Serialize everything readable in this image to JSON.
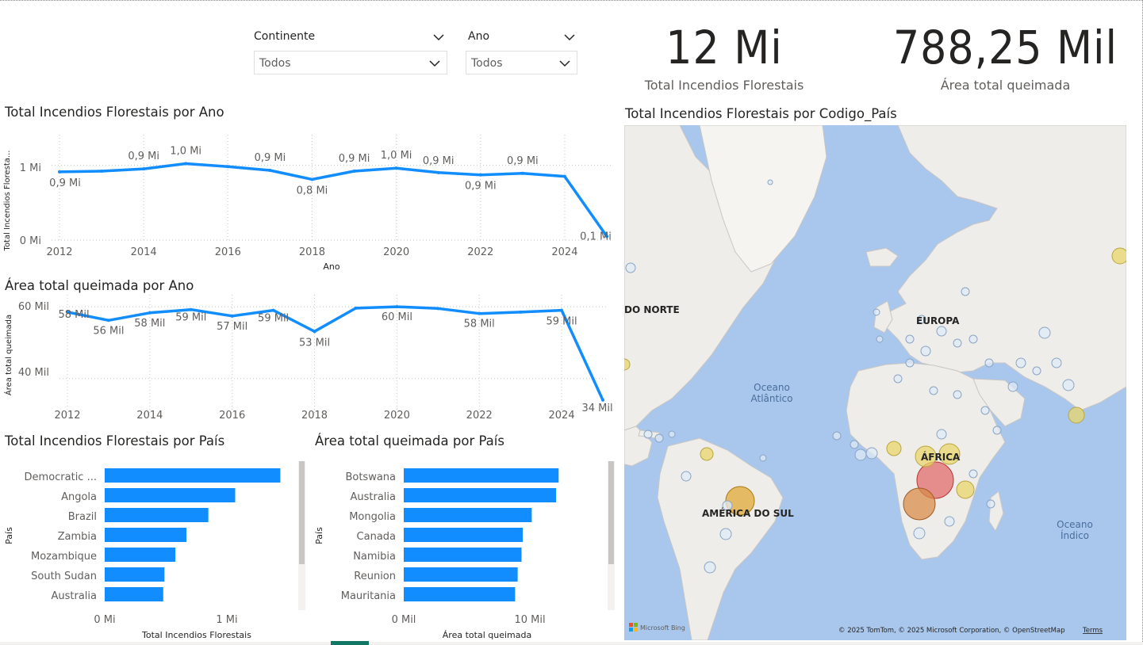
{
  "slicers": {
    "continent": {
      "title": "Continente",
      "value": "Todos"
    },
    "year": {
      "title": "Ano",
      "value": "Todos"
    }
  },
  "kpis": {
    "fires": {
      "value": "12 Mi",
      "label": "Total Incendios Florestais"
    },
    "area": {
      "value": "788,25 Mil",
      "label": "Área total queimada"
    }
  },
  "line1": {
    "title": "Total Incendios Florestais por Ano",
    "ylabel": "Total Incendios Floresta...",
    "xlabel": "Ano",
    "yticks": [
      "1 Mi",
      "0 Mi"
    ],
    "xticks": [
      "2012",
      "2014",
      "2016",
      "2018",
      "2020",
      "2022",
      "2024"
    ]
  },
  "line2": {
    "title": "Área total queimada por Ano",
    "ylabel": "Área total queimada",
    "yticks": [
      "60 Mil",
      "40 Mil"
    ],
    "xticks": [
      "2012",
      "2014",
      "2016",
      "2018",
      "2020",
      "2022",
      "2024"
    ]
  },
  "bar1": {
    "title": "Total Incendios Florestais por País",
    "ylabel": "País",
    "xlabel": "Total Incendios Florestais",
    "xticks": [
      "0 Mi",
      "1 Mi"
    ]
  },
  "bar2": {
    "title": "Área total queimada por País",
    "ylabel": "País",
    "xlabel": "Área total queimada",
    "xticks": [
      "0 Mil",
      "10 Mil"
    ]
  },
  "map": {
    "title": "Total Incendios Florestais por Codigo_País",
    "labels": {
      "na": "DO NORTE",
      "eu": "EUROPA",
      "af": "ÁFRICA",
      "sa": "AMÉRICA DO SUL",
      "atl1": "Oceano",
      "atl2": "Atlântico",
      "ind1": "Oceano",
      "ind2": "Índico"
    },
    "bing": "Microsoft Bing",
    "attribution": "© 2025 TomTom, © 2025 Microsoft Corporation, © OpenStreetMap",
    "terms": "Terms"
  },
  "chart_data": [
    {
      "type": "line",
      "title": "Total Incendios Florestais por Ano",
      "xlabel": "Ano",
      "ylabel": "Total Incendios Floresta...",
      "x": [
        2012,
        2013,
        2014,
        2015,
        2016,
        2017,
        2018,
        2019,
        2020,
        2021,
        2022,
        2023,
        2024,
        2025
      ],
      "values": [
        0.91,
        0.92,
        0.95,
        1.02,
        0.98,
        0.93,
        0.81,
        0.92,
        0.96,
        0.9,
        0.87,
        0.89,
        0.85,
        0.05
      ],
      "data_labels": [
        "0,9 Mi",
        "",
        "0,9 Mi",
        "1,0 Mi",
        "",
        "0,9 Mi",
        "0,8 Mi",
        "0,9 Mi",
        "1,0 Mi",
        "0,9 Mi",
        "0,9 Mi",
        "0,9 Mi",
        "",
        "0,1 Mi"
      ],
      "ylim": [
        0,
        1.3
      ],
      "color": "#118DFF",
      "grid": true
    },
    {
      "type": "line",
      "title": "Área total queimada por Ano",
      "ylabel": "Área total queimada",
      "x": [
        2012,
        2013,
        2014,
        2015,
        2016,
        2017,
        2018,
        2019,
        2020,
        2021,
        2022,
        2023,
        2024,
        2025
      ],
      "values": [
        58.5,
        56.2,
        58.3,
        59.2,
        57.4,
        59.0,
        53.1,
        59.6,
        60.0,
        59.5,
        58.1,
        58.5,
        59.0,
        34.0
      ],
      "data_labels": [
        "58 Mil",
        "56 Mil",
        "58 Mil",
        "59 Mil",
        "57 Mil",
        "59 Mil",
        "53 Mil",
        "",
        "60 Mil",
        "",
        "58 Mil",
        "",
        "59 Mil",
        "34 Mil"
      ],
      "ylim": [
        30,
        62
      ],
      "color": "#118DFF",
      "grid": true
    },
    {
      "type": "bar",
      "orientation": "horizontal",
      "title": "Total Incendios Florestais por País",
      "xlabel": "Total Incendios Florestais",
      "ylabel": "País",
      "categories": [
        "Democratic ...",
        "Angola",
        "Brazil",
        "Zambia",
        "Mozambique",
        "South Sudan",
        "Australia"
      ],
      "values": [
        1.44,
        1.07,
        0.85,
        0.67,
        0.58,
        0.49,
        0.48
      ],
      "xlim": [
        0,
        1.6
      ],
      "color": "#118DFF"
    },
    {
      "type": "bar",
      "orientation": "horizontal",
      "title": "Área total queimada por País",
      "xlabel": "Área total queimada",
      "ylabel": "País",
      "categories": [
        "Botswana",
        "Australia",
        "Mongolia",
        "Canada",
        "Namibia",
        "Reunion",
        "Mauritania"
      ],
      "values": [
        12.1,
        11.9,
        10.0,
        9.3,
        9.2,
        8.9,
        8.7
      ],
      "xlim": [
        0,
        15.8
      ],
      "color": "#118DFF"
    }
  ]
}
